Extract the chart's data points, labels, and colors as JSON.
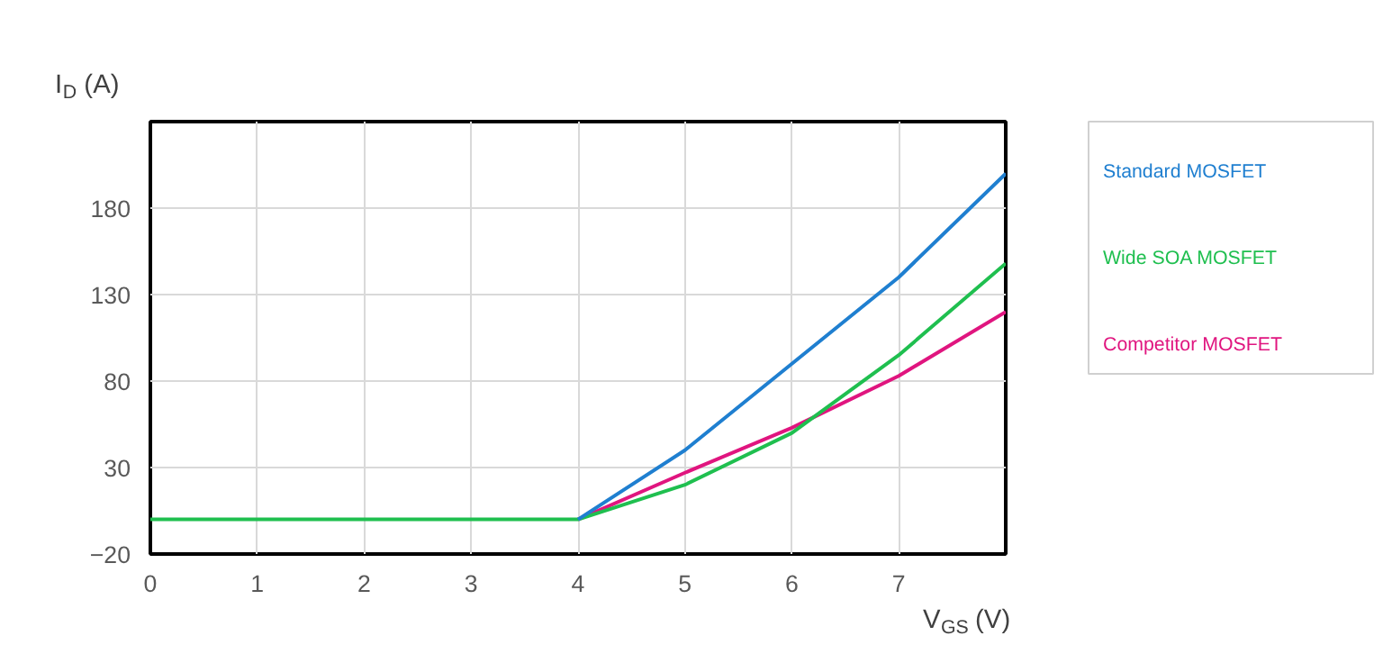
{
  "chart_data": {
    "type": "line",
    "xlabel": "V$_{GS}$ (V)",
    "ylabel": "I$_{D}$ (A)",
    "x": [
      0,
      1,
      2,
      3,
      4,
      5,
      6,
      7,
      8
    ],
    "series": [
      {
        "name": "Standard MOSFET",
        "color": "#1f7fd0",
        "values": [
          null,
          null,
          null,
          null,
          0,
          40,
          90,
          140,
          200
        ]
      },
      {
        "name": "Wide SOA MOSFET",
        "color": "#1fbf4f",
        "values": [
          0,
          0,
          0,
          0,
          0,
          20,
          50,
          95,
          148
        ]
      },
      {
        "name": "Competitor MOSFET",
        "color": "#e0157f",
        "values": [
          null,
          null,
          null,
          null,
          0,
          27,
          53,
          83,
          120
        ]
      }
    ],
    "xlim": [
      0,
      8
    ],
    "xticks": [
      0,
      1,
      2,
      3,
      4,
      5,
      6,
      7
    ],
    "ylim": [
      -20,
      230
    ],
    "yticks": [
      -20,
      30,
      80,
      130,
      180
    ],
    "grid": true,
    "legend": "right",
    "marker": "none",
    "line_style": "solid"
  }
}
